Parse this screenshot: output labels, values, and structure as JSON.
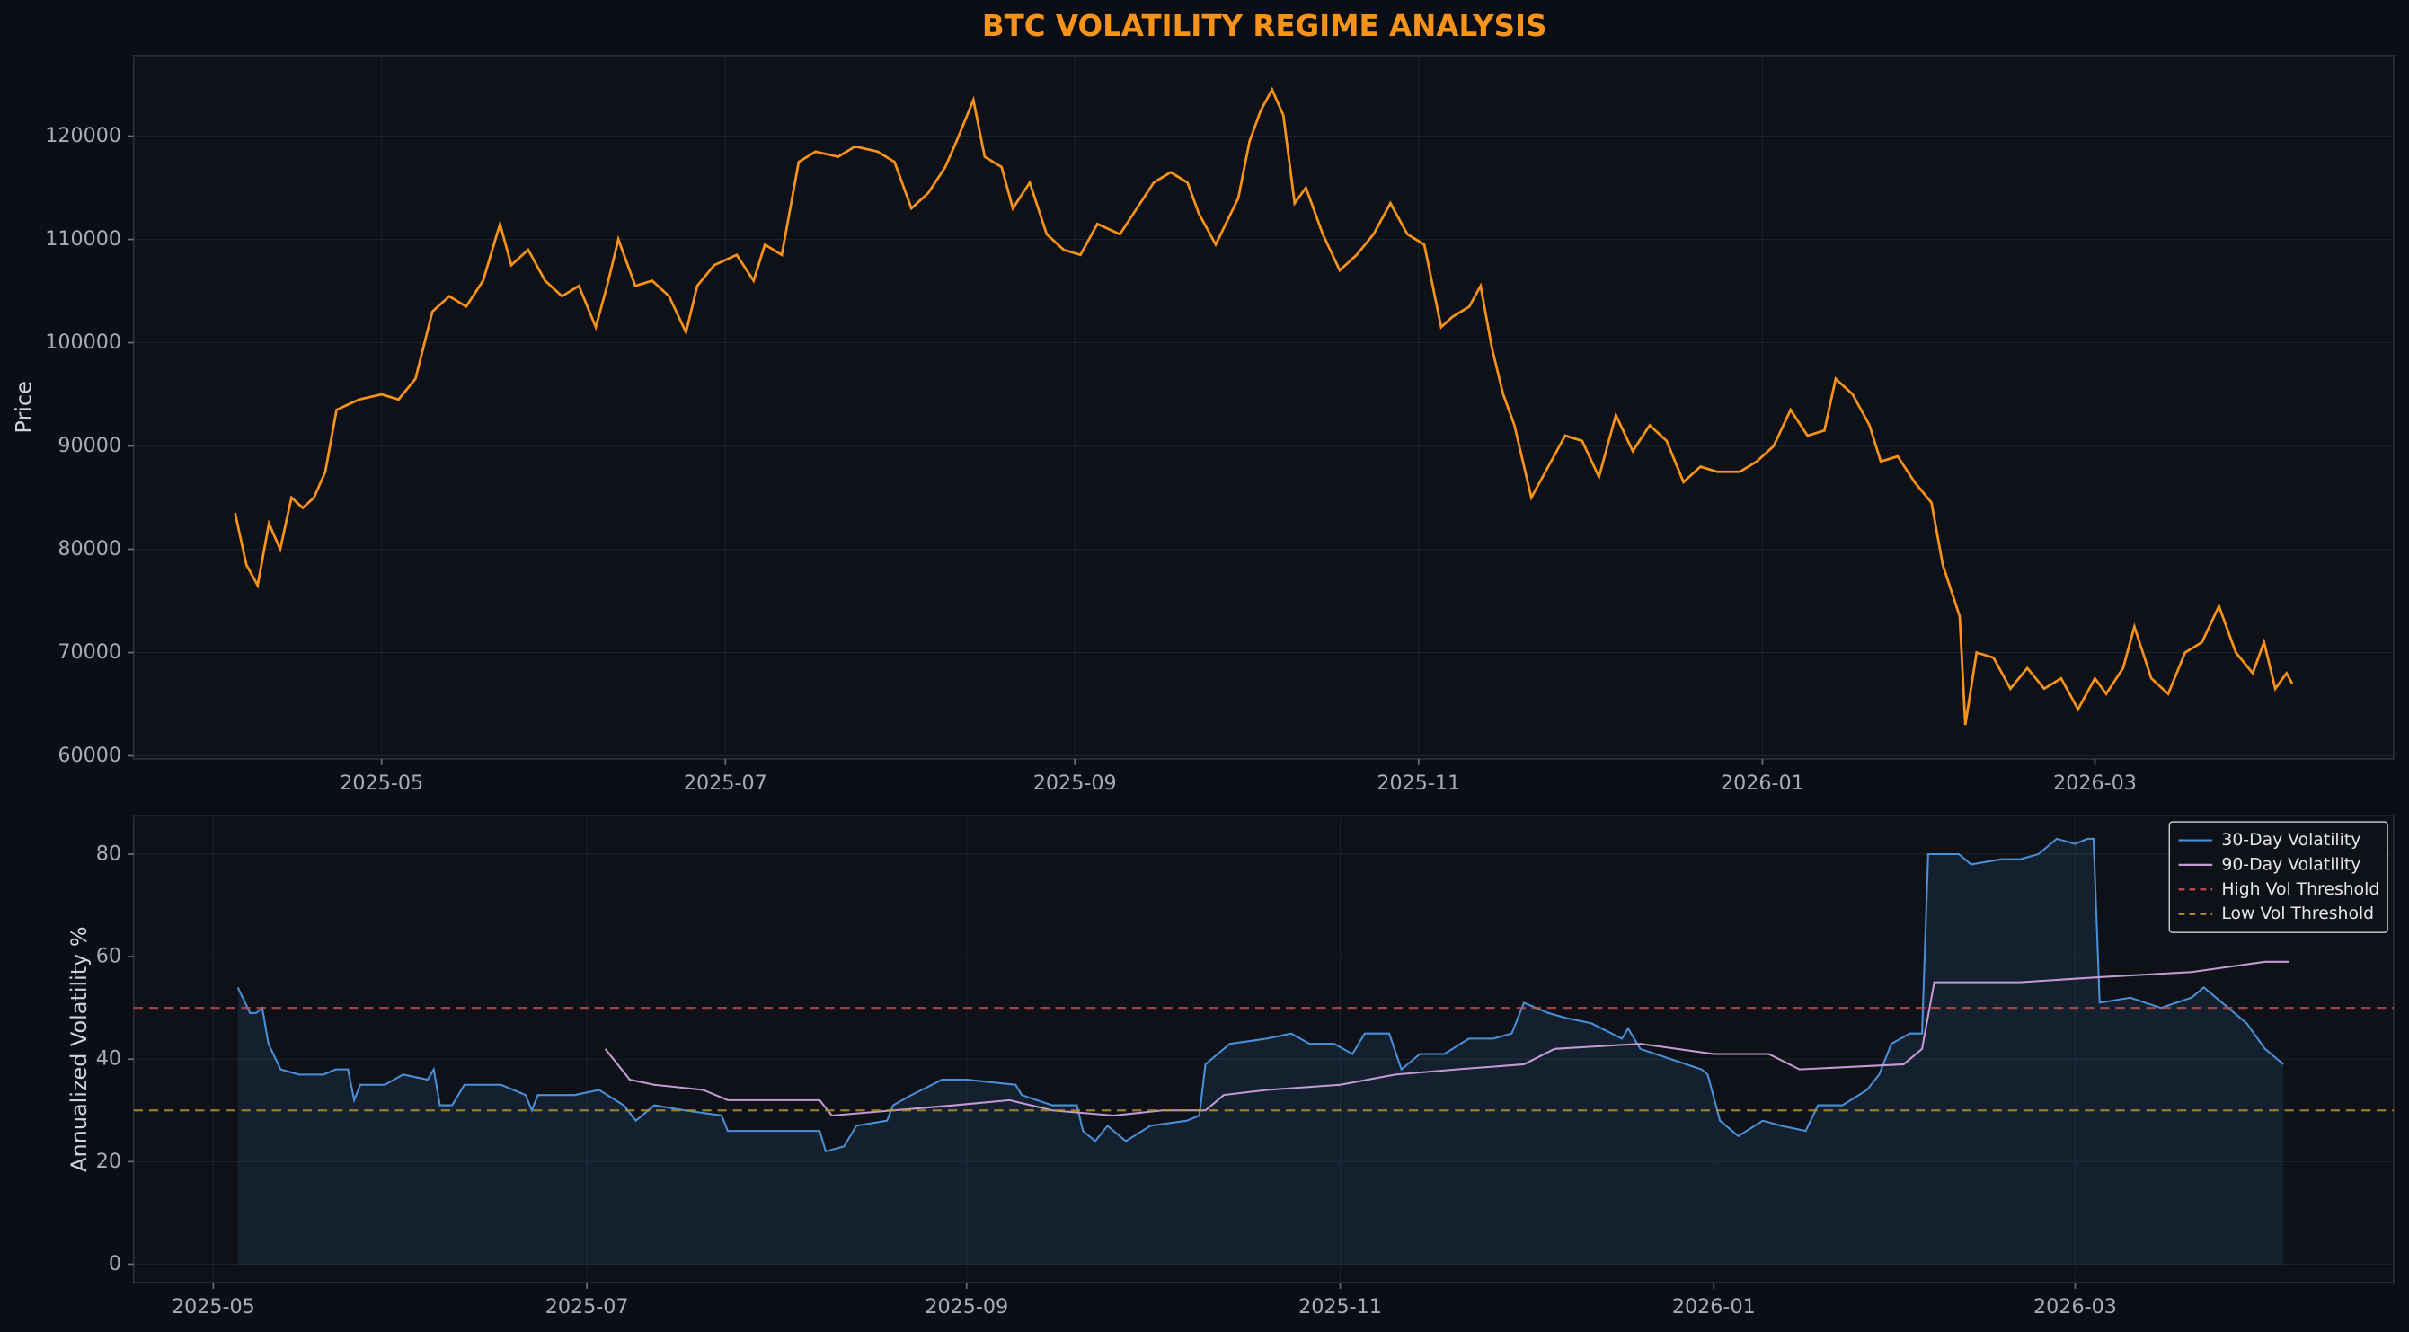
{
  "chart_data": [
    {
      "type": "line",
      "title": "BTC VOLATILITY REGIME ANALYSIS",
      "ylabel": "Price",
      "grid": true,
      "xlim": [
        "2025-03-18",
        "2026-04-23"
      ],
      "xticks": [
        "2025-05",
        "2025-07",
        "2025-09",
        "2025-11",
        "2026-01",
        "2026-03"
      ],
      "ylim": [
        59700,
        127800
      ],
      "yticks": [
        60000,
        70000,
        80000,
        90000,
        100000,
        110000,
        120000
      ],
      "x": [
        "2025-04-05",
        "2025-04-07",
        "2025-04-09",
        "2025-04-11",
        "2025-04-13",
        "2025-04-15",
        "2025-04-17",
        "2025-04-19",
        "2025-04-21",
        "2025-04-23",
        "2025-04-27",
        "2025-05-01",
        "2025-05-04",
        "2025-05-07",
        "2025-05-10",
        "2025-05-13",
        "2025-05-16",
        "2025-05-19",
        "2025-05-22",
        "2025-05-24",
        "2025-05-27",
        "2025-05-30",
        "2025-06-02",
        "2025-06-05",
        "2025-06-08",
        "2025-06-10",
        "2025-06-12",
        "2025-06-15",
        "2025-06-18",
        "2025-06-21",
        "2025-06-24",
        "2025-06-26",
        "2025-06-29",
        "2025-07-03",
        "2025-07-06",
        "2025-07-08",
        "2025-07-11",
        "2025-07-14",
        "2025-07-17",
        "2025-07-21",
        "2025-07-24",
        "2025-07-28",
        "2025-07-31",
        "2025-08-03",
        "2025-08-06",
        "2025-08-09",
        "2025-08-11",
        "2025-08-14",
        "2025-08-16",
        "2025-08-19",
        "2025-08-21",
        "2025-08-24",
        "2025-08-27",
        "2025-08-30",
        "2025-09-02",
        "2025-09-05",
        "2025-09-09",
        "2025-09-12",
        "2025-09-15",
        "2025-09-18",
        "2025-09-21",
        "2025-09-23",
        "2025-09-26",
        "2025-09-30",
        "2025-10-02",
        "2025-10-04",
        "2025-10-06",
        "2025-10-08",
        "2025-10-10",
        "2025-10-12",
        "2025-10-15",
        "2025-10-18",
        "2025-10-21",
        "2025-10-24",
        "2025-10-27",
        "2025-10-30",
        "2025-11-02",
        "2025-11-05",
        "2025-11-07",
        "2025-11-10",
        "2025-11-12",
        "2025-11-14",
        "2025-11-16",
        "2025-11-18",
        "2025-11-21",
        "2025-11-24",
        "2025-11-27",
        "2025-11-30",
        "2025-12-03",
        "2025-12-06",
        "2025-12-09",
        "2025-12-12",
        "2025-12-15",
        "2025-12-18",
        "2025-12-21",
        "2025-12-24",
        "2025-12-28",
        "2025-12-31",
        "2026-01-03",
        "2026-01-06",
        "2026-01-09",
        "2026-01-12",
        "2026-01-14",
        "2026-01-17",
        "2026-01-20",
        "2026-01-22",
        "2026-01-25",
        "2026-01-28",
        "2026-01-31",
        "2026-02-02",
        "2026-02-05",
        "2026-02-06",
        "2026-02-08",
        "2026-02-11",
        "2026-02-14",
        "2026-02-17",
        "2026-02-20",
        "2026-02-23",
        "2026-02-26",
        "2026-03-01",
        "2026-03-03",
        "2026-03-06",
        "2026-03-08",
        "2026-03-11",
        "2026-03-14",
        "2026-03-17",
        "2026-03-20",
        "2026-03-23",
        "2026-03-26",
        "2026-03-29",
        "2026-03-31",
        "2026-04-02",
        "2026-04-04",
        "2026-04-05"
      ],
      "series": [
        {
          "color": "#f7931a",
          "values": [
            83500,
            78500,
            76500,
            82500,
            80000,
            85000,
            84000,
            85000,
            87500,
            93500,
            94500,
            95000,
            94500,
            96500,
            103000,
            104500,
            103500,
            106000,
            111500,
            107500,
            109000,
            106000,
            104500,
            105500,
            101500,
            105500,
            110000,
            105500,
            106000,
            104500,
            101000,
            105500,
            107500,
            108500,
            106000,
            109500,
            108500,
            117500,
            118500,
            118000,
            119000,
            118500,
            117500,
            113000,
            114500,
            117000,
            119500,
            123500,
            118000,
            117000,
            113000,
            115500,
            110500,
            109000,
            108500,
            111500,
            110500,
            113000,
            115500,
            116500,
            115500,
            112500,
            109500,
            114000,
            119500,
            122500,
            124500,
            122000,
            113500,
            115000,
            110500,
            107000,
            108500,
            110500,
            113500,
            110500,
            109500,
            101500,
            102500,
            103500,
            105500,
            99500,
            95000,
            92000,
            85000,
            88000,
            91000,
            90500,
            87000,
            93000,
            89500,
            92000,
            90500,
            86500,
            88000,
            87500,
            87500,
            88500,
            90000,
            93500,
            91000,
            91500,
            96500,
            95000,
            92000,
            88500,
            89000,
            86500,
            84500,
            78500,
            73500,
            63000,
            70000,
            69500,
            66500,
            68500,
            66500,
            67500,
            64500,
            67500,
            66000,
            68500,
            72500,
            67500,
            66000,
            70000,
            71000,
            74500,
            70000,
            68000,
            71000,
            66500,
            68000,
            67000
          ]
        }
      ]
    },
    {
      "type": "line",
      "ylabel": "Annualized Volatility %",
      "grid": true,
      "legend": "upper right",
      "xlim": [
        "2025-04-18",
        "2026-04-22"
      ],
      "xticks": [
        "2025-05",
        "2025-07",
        "2025-09",
        "2025-11",
        "2026-01",
        "2026-03"
      ],
      "ylim": [
        -3.6,
        87.5
      ],
      "yticks": [
        0,
        20,
        40,
        60,
        80
      ],
      "series": [
        {
          "name": "30-Day Volatility",
          "color": "#4a90d9",
          "fill": true,
          "x": [
            "2025-05-05",
            "2025-05-07",
            "2025-05-08",
            "2025-05-09",
            "2025-05-10",
            "2025-05-12",
            "2025-05-15",
            "2025-05-19",
            "2025-05-21",
            "2025-05-23",
            "2025-05-24",
            "2025-05-25",
            "2025-05-29",
            "2025-06-01",
            "2025-06-05",
            "2025-06-06",
            "2025-06-07",
            "2025-06-09",
            "2025-06-11",
            "2025-06-17",
            "2025-06-21",
            "2025-06-22",
            "2025-06-23",
            "2025-06-29",
            "2025-07-03",
            "2025-07-07",
            "2025-07-09",
            "2025-07-12",
            "2025-07-17",
            "2025-07-23",
            "2025-07-24",
            "2025-07-29",
            "2025-08-03",
            "2025-08-08",
            "2025-08-09",
            "2025-08-12",
            "2025-08-14",
            "2025-08-19",
            "2025-08-20",
            "2025-08-23",
            "2025-08-28",
            "2025-09-01",
            "2025-09-09",
            "2025-09-10",
            "2025-09-15",
            "2025-09-19",
            "2025-09-20",
            "2025-09-22",
            "2025-09-24",
            "2025-09-27",
            "2025-10-01",
            "2025-10-07",
            "2025-10-09",
            "2025-10-10",
            "2025-10-14",
            "2025-10-20",
            "2025-10-24",
            "2025-10-27",
            "2025-10-31",
            "2025-11-03",
            "2025-11-05",
            "2025-11-09",
            "2025-11-11",
            "2025-11-14",
            "2025-11-18",
            "2025-11-22",
            "2025-11-26",
            "2025-11-29",
            "2025-12-01",
            "2025-12-05",
            "2025-12-08",
            "2025-12-12",
            "2025-12-17",
            "2025-12-18",
            "2025-12-20",
            "2025-12-25",
            "2025-12-30",
            "2025-12-31",
            "2026-01-02",
            "2026-01-05",
            "2026-01-09",
            "2026-01-12",
            "2026-01-16",
            "2026-01-18",
            "2026-01-22",
            "2026-01-26",
            "2026-01-28",
            "2026-01-30",
            "2026-02-02",
            "2026-02-04",
            "2026-02-05",
            "2026-02-10",
            "2026-02-12",
            "2026-02-17",
            "2026-02-20",
            "2026-02-23",
            "2026-02-26",
            "2026-03-01",
            "2026-03-03",
            "2026-03-04",
            "2026-03-05",
            "2026-03-10",
            "2026-03-15",
            "2026-03-20",
            "2026-03-22",
            "2026-03-25",
            "2026-03-29",
            "2026-04-01",
            "2026-04-04"
          ],
          "values": [
            54,
            49,
            49,
            50,
            43,
            38,
            37,
            37,
            38,
            38,
            32,
            35,
            35,
            37,
            36,
            38,
            31,
            31,
            35,
            35,
            33,
            30,
            33,
            33,
            34,
            31,
            28,
            31,
            30,
            29,
            26,
            26,
            26,
            26,
            22,
            23,
            27,
            28,
            31,
            33,
            36,
            36,
            35,
            33,
            31,
            31,
            26,
            24,
            27,
            24,
            27,
            28,
            29,
            39,
            43,
            44,
            45,
            43,
            43,
            41,
            45,
            45,
            38,
            41,
            41,
            44,
            44,
            45,
            51,
            49,
            48,
            47,
            44,
            46,
            42,
            40,
            38,
            37,
            28,
            25,
            28,
            27,
            26,
            31,
            31,
            34,
            37,
            43,
            45,
            45,
            80,
            80,
            78,
            79,
            79,
            80,
            83,
            82,
            83,
            83,
            51,
            52,
            50,
            52,
            54,
            51,
            47,
            42,
            39
          ]
        },
        {
          "name": "90-Day Volatility",
          "color": "#c39bd3",
          "x": [
            "2025-07-04",
            "2025-07-08",
            "2025-07-12",
            "2025-07-20",
            "2025-07-24",
            "2025-08-01",
            "2025-08-08",
            "2025-08-10",
            "2025-08-20",
            "2025-08-30",
            "2025-09-08",
            "2025-09-15",
            "2025-09-25",
            "2025-10-03",
            "2025-10-10",
            "2025-10-13",
            "2025-10-20",
            "2025-11-01",
            "2025-11-10",
            "2025-11-20",
            "2025-12-01",
            "2025-12-06",
            "2025-12-20",
            "2026-01-01",
            "2026-01-10",
            "2026-01-15",
            "2026-02-01",
            "2026-02-04",
            "2026-02-06",
            "2026-02-20",
            "2026-03-05",
            "2026-03-20",
            "2026-04-01",
            "2026-04-05"
          ],
          "values": [
            42,
            36,
            35,
            34,
            32,
            32,
            32,
            29,
            30,
            31,
            32,
            30,
            29,
            30,
            30,
            33,
            34,
            35,
            37,
            38,
            39,
            42,
            43,
            41,
            41,
            38,
            39,
            42,
            55,
            55,
            56,
            57,
            59,
            59
          ]
        },
        {
          "name": "High Vol Threshold",
          "color": "#c0504d",
          "value": 50,
          "dash": true
        },
        {
          "name": "Low Vol Threshold",
          "color": "#b8962e",
          "value": 30,
          "dash": true
        }
      ]
    }
  ]
}
